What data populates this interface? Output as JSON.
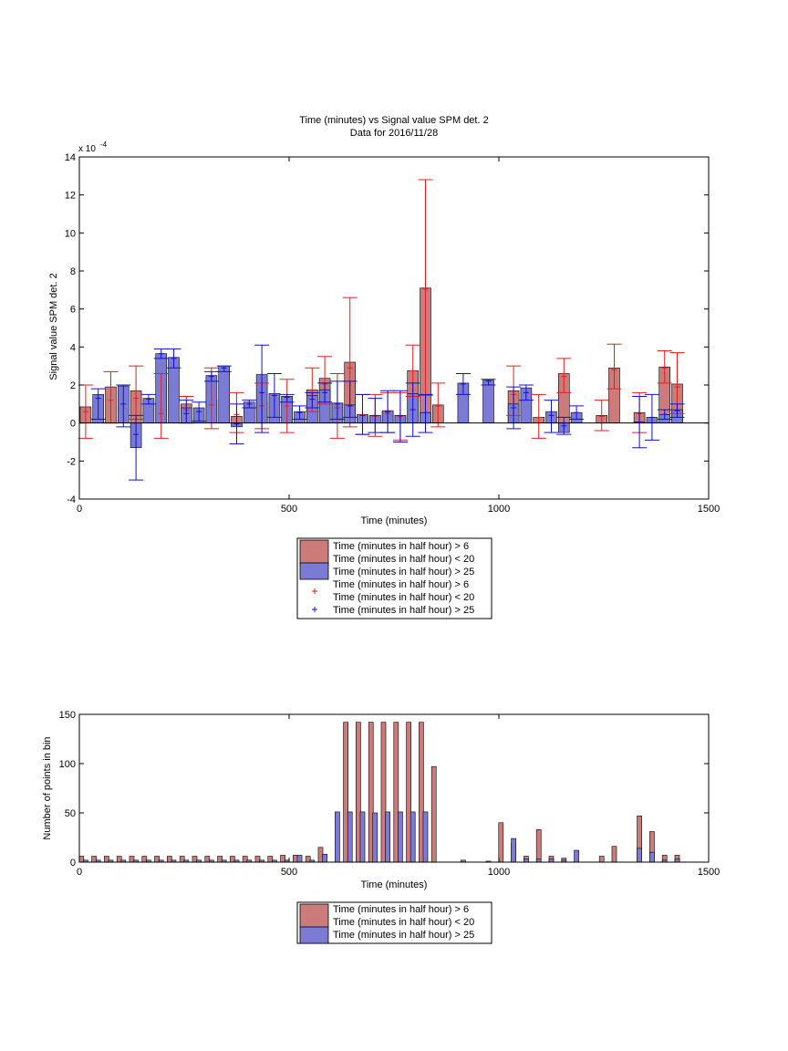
{
  "colors": {
    "series_red_fill": "#cc7b7b",
    "series_blue_fill": "#7b7bd6",
    "errorbar_red": "#e02020",
    "errorbar_blue": "#1010d0",
    "axis": "#000000"
  },
  "chart_data": [
    {
      "type": "bar",
      "title": "Time (minutes) vs Signal value SPM det. 2",
      "subtitle": "Data for 2016/11/28",
      "xlabel": "Time (minutes)",
      "ylabel": "Signal value SPM det. 2",
      "exponent_label": "x 10",
      "exponent_power": "-4",
      "xlim": [
        0,
        1500
      ],
      "ylim": [
        -4,
        14
      ],
      "xticks": [
        "0",
        "500",
        "1000",
        "1500"
      ],
      "yticks": [
        "-4",
        "-2",
        "0",
        "2",
        "4",
        "6",
        "8",
        "10",
        "12",
        "14"
      ],
      "bar_width": 26,
      "grid": false,
      "legend_position": "below",
      "series": [
        {
          "name": "Time (minutes in half hour) > 6\nTime (minutes in half hour) < 20",
          "color": "#cc7b7b",
          "error_color": "#e02020",
          "x": [
            15,
            75,
            135,
            195,
            255,
            315,
            375,
            435,
            495,
            555,
            585,
            615,
            645,
            675,
            705,
            735,
            765,
            795,
            825,
            855,
            1035,
            1095,
            1155,
            1245,
            1275,
            1335,
            1395,
            1425
          ],
          "values": [
            0.85,
            1.9,
            1.7,
            0.9,
            1.0,
            1.2,
            0.35,
            1.1,
            1.4,
            1.75,
            2.35,
            1.05,
            3.2,
            0.35,
            0.4,
            0.6,
            0.4,
            2.75,
            7.1,
            0.95,
            1.7,
            0.3,
            2.6,
            0.4,
            2.9,
            0.55,
            2.95,
            2.05
          ],
          "err_low": [
            -0.8,
            0.0,
            0.2,
            -0.8,
            0.0,
            -0.3,
            -0.5,
            -0.3,
            -0.5,
            0.6,
            1.0,
            -0.8,
            -0.2,
            -0.6,
            -0.7,
            -0.5,
            -0.9,
            1.4,
            1.45,
            -0.2,
            0.4,
            -0.8,
            1.6,
            -0.4,
            1.8,
            -0.5,
            2.1,
            0.5
          ],
          "err_high": [
            2.0,
            2.7,
            3.0,
            2.6,
            1.4,
            2.9,
            1.6,
            2.1,
            2.3,
            2.9,
            3.5,
            2.6,
            6.6,
            1.5,
            1.5,
            1.6,
            1.6,
            4.1,
            12.8,
            2.1,
            3.0,
            1.5,
            3.4,
            1.2,
            4.15,
            1.6,
            3.8,
            3.7
          ],
          "centers": [
            0.6,
            1.2,
            1.3,
            0.5,
            0.7,
            0.95,
            0.45,
            0.9,
            0.9,
            1.6,
            2.05,
            0.8,
            2.9,
            0.45,
            0.35,
            0.5,
            0.35,
            2.75,
            7.05,
            0.9,
            1.5,
            0.3,
            2.45,
            0.35,
            2.8,
            0.5,
            2.9,
            1.9
          ]
        },
        {
          "name": "Time (minutes in half hour) > 25",
          "color": "#7b7bd6",
          "error_color": "#1010d0",
          "x": [
            45,
            105,
            135,
            165,
            195,
            225,
            255,
            285,
            315,
            345,
            375,
            405,
            435,
            465,
            495,
            525,
            555,
            585,
            615,
            645,
            675,
            705,
            735,
            765,
            795,
            825,
            915,
            975,
            1035,
            1065,
            1125,
            1155,
            1185,
            1335,
            1365,
            1395,
            1425
          ],
          "values": [
            1.5,
            1.95,
            -1.3,
            1.3,
            3.65,
            3.45,
            0.8,
            0.8,
            2.5,
            3.0,
            -0.2,
            1.1,
            2.55,
            1.55,
            1.4,
            0.6,
            1.45,
            1.75,
            1.05,
            0.95,
            0.45,
            0.4,
            0.65,
            0.4,
            1.55,
            0.55,
            2.1,
            2.25,
            1.0,
            1.85,
            0.6,
            -0.5,
            0.55,
            0.05,
            0.3,
            0.45,
            0.7
          ],
          "err_low": [
            0.2,
            -0.2,
            -3.0,
            1.0,
            3.4,
            2.9,
            0.0,
            0.1,
            2.2,
            2.7,
            -1.1,
            0.8,
            -0.5,
            0.3,
            1.1,
            0.2,
            0.8,
            1.1,
            0.2,
            0.3,
            -0.6,
            -0.5,
            -0.5,
            -1.0,
            -0.7,
            -0.5,
            1.5,
            2.0,
            -0.3,
            1.2,
            -0.5,
            -0.6,
            0.2,
            -1.3,
            -0.9,
            0.2,
            0.3
          ],
          "err_high": [
            1.8,
            2.0,
            0.4,
            1.5,
            3.9,
            3.9,
            1.2,
            1.1,
            2.7,
            3.0,
            1.0,
            1.2,
            4.1,
            2.6,
            1.5,
            0.9,
            1.6,
            2.1,
            2.2,
            2.2,
            1.5,
            1.3,
            1.7,
            1.7,
            2.1,
            1.5,
            2.6,
            2.3,
            1.9,
            2.0,
            1.2,
            0.3,
            0.9,
            1.4,
            1.5,
            0.7,
            1.0
          ],
          "centers": [
            1.3,
            1.0,
            -0.6,
            1.25,
            3.65,
            3.4,
            0.5,
            0.6,
            2.45,
            2.9,
            -0.05,
            1.0,
            1.6,
            1.45,
            1.35,
            0.55,
            1.25,
            1.6,
            1.0,
            0.9,
            0.4,
            0.4,
            0.6,
            0.4,
            0.7,
            0.55,
            2.05,
            2.2,
            0.8,
            1.6,
            0.4,
            -0.15,
            0.55,
            0.05,
            0.3,
            0.45,
            0.65
          ]
        }
      ],
      "legend_entries": [
        "Time (minutes in half hour) > 6",
        "Time (minutes in half hour) < 20",
        "Time (minutes in half hour) > 25",
        "Time (minutes in half hour) > 6",
        "Time (minutes in half hour) < 20",
        "Time (minutes in half hour) > 25"
      ]
    },
    {
      "type": "bar",
      "title": "",
      "xlabel": "Time (minutes)",
      "ylabel": "Number of points in bin",
      "xlim": [
        0,
        1500
      ],
      "ylim": [
        0,
        150
      ],
      "xticks": [
        "0",
        "500",
        "1000",
        "1500"
      ],
      "yticks": [
        "0",
        "50",
        "100",
        "150"
      ],
      "bar_width": 11,
      "grid": false,
      "legend_position": "below",
      "series": [
        {
          "name": "Time (minutes in half hour) > 6\nTime (minutes in half hour) < 20",
          "color": "#cc7b7b",
          "x": [
            5,
            35,
            65,
            95,
            125,
            155,
            185,
            215,
            245,
            275,
            305,
            335,
            365,
            395,
            425,
            455,
            485,
            515,
            545,
            575,
            635,
            665,
            695,
            725,
            755,
            785,
            815,
            845,
            1005,
            1035,
            1065,
            1095,
            1125,
            1155,
            1185,
            1245,
            1275,
            1335,
            1365,
            1395,
            1425
          ],
          "values": [
            6,
            6,
            6,
            6,
            6,
            6,
            6,
            6,
            6,
            6,
            6,
            6,
            6,
            6,
            6,
            6,
            7,
            7,
            6,
            15,
            142,
            142,
            142,
            142,
            142,
            142,
            142,
            97,
            40,
            19,
            6,
            33,
            6,
            4,
            0,
            6,
            16,
            47,
            31,
            7,
            7
          ],
          "shown": [
            1,
            1,
            1,
            1,
            1,
            1,
            1,
            1,
            1,
            1,
            1,
            1,
            1,
            1,
            1,
            1,
            1,
            1,
            1,
            1,
            1,
            1,
            1,
            1,
            1,
            1,
            1,
            1,
            1,
            1,
            1,
            1,
            1,
            1,
            0,
            1,
            1,
            1,
            1,
            1,
            1
          ]
        },
        {
          "name": "Time (minutes in half hour) > 25",
          "color": "#7b7bd6",
          "x": [
            15,
            45,
            75,
            105,
            135,
            165,
            195,
            225,
            255,
            285,
            315,
            345,
            375,
            405,
            435,
            465,
            495,
            525,
            555,
            585,
            615,
            645,
            675,
            705,
            735,
            765,
            795,
            825,
            915,
            975,
            1035,
            1065,
            1095,
            1125,
            1155,
            1185,
            1335,
            1365,
            1395,
            1425
          ],
          "values": [
            2,
            2,
            2,
            2,
            2,
            2,
            2,
            2,
            2,
            2,
            2,
            2,
            2,
            2,
            2,
            2,
            2,
            7,
            2,
            8,
            51,
            51,
            51,
            50,
            51,
            51,
            51,
            51,
            2,
            1,
            24,
            3,
            3,
            3,
            2,
            12,
            14,
            10,
            2,
            3
          ]
        }
      ],
      "legend_entries": [
        "Time (minutes in half hour) > 6",
        "Time (minutes in half hour) < 20",
        "Time (minutes in half hour) > 25"
      ]
    }
  ]
}
